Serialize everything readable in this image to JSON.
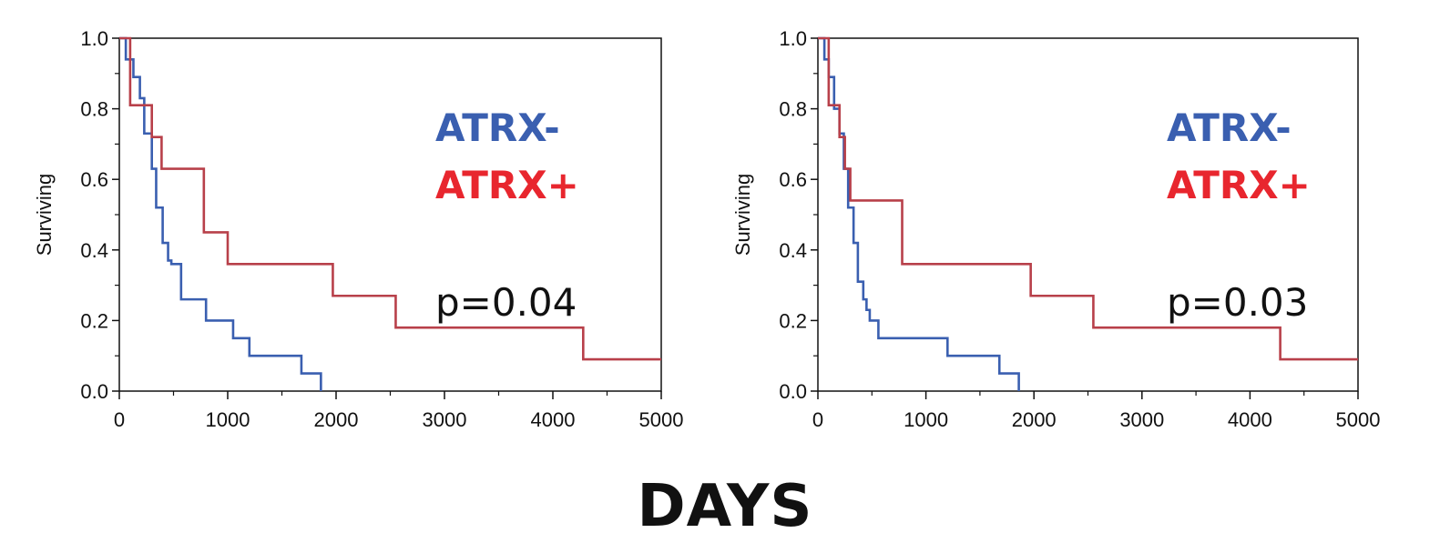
{
  "chart_data": [
    {
      "type": "line",
      "step": true,
      "xlabel": "",
      "ylabel": "Surviving",
      "xlim": [
        0,
        5000
      ],
      "ylim": [
        0,
        1.0
      ],
      "xticks": [
        "0",
        "1000",
        "2000",
        "3000",
        "4000",
        "5000"
      ],
      "yticks": [
        "0.0",
        "0.2",
        "0.4",
        "0.6",
        "0.8",
        "1.0"
      ],
      "annotation": "p=0.04",
      "series": [
        {
          "name": "ATRX-",
          "color": "#3a5fb0",
          "x": [
            0,
            60,
            130,
            190,
            230,
            300,
            340,
            400,
            450,
            480,
            570,
            800,
            1050,
            1200,
            1680,
            1860
          ],
          "y": [
            1.0,
            0.94,
            0.89,
            0.83,
            0.73,
            0.63,
            0.52,
            0.42,
            0.37,
            0.36,
            0.26,
            0.2,
            0.15,
            0.1,
            0.05,
            0.0
          ]
        },
        {
          "name": "ATRX+",
          "color": "#b8404a",
          "x": [
            0,
            100,
            200,
            300,
            390,
            780,
            1000,
            1970,
            2550,
            4280,
            5000
          ],
          "y": [
            1.0,
            0.81,
            0.81,
            0.72,
            0.63,
            0.45,
            0.36,
            0.27,
            0.18,
            0.09,
            0.09
          ]
        }
      ]
    },
    {
      "type": "line",
      "step": true,
      "xlabel": "",
      "ylabel": "Surviving",
      "xlim": [
        0,
        5000
      ],
      "ylim": [
        0,
        1.0
      ],
      "xticks": [
        "0",
        "1000",
        "2000",
        "3000",
        "4000",
        "5000"
      ],
      "yticks": [
        "0.0",
        "0.2",
        "0.4",
        "0.6",
        "0.8",
        "1.0"
      ],
      "annotation": "p=0.03",
      "series": [
        {
          "name": "ATRX-",
          "color": "#3a5fb0",
          "x": [
            0,
            60,
            100,
            150,
            200,
            240,
            280,
            330,
            370,
            420,
            450,
            480,
            560,
            1200,
            1680,
            1860
          ],
          "y": [
            1.0,
            0.94,
            0.89,
            0.8,
            0.73,
            0.63,
            0.52,
            0.42,
            0.31,
            0.26,
            0.23,
            0.2,
            0.15,
            0.1,
            0.05,
            0.0
          ]
        },
        {
          "name": "ATRX+",
          "color": "#b8404a",
          "x": [
            0,
            100,
            200,
            250,
            300,
            780,
            1970,
            2550,
            4280,
            5000
          ],
          "y": [
            1.0,
            0.81,
            0.72,
            0.63,
            0.54,
            0.36,
            0.27,
            0.18,
            0.09,
            0.09
          ]
        }
      ]
    }
  ],
  "shared_xlabel": "DAYS"
}
